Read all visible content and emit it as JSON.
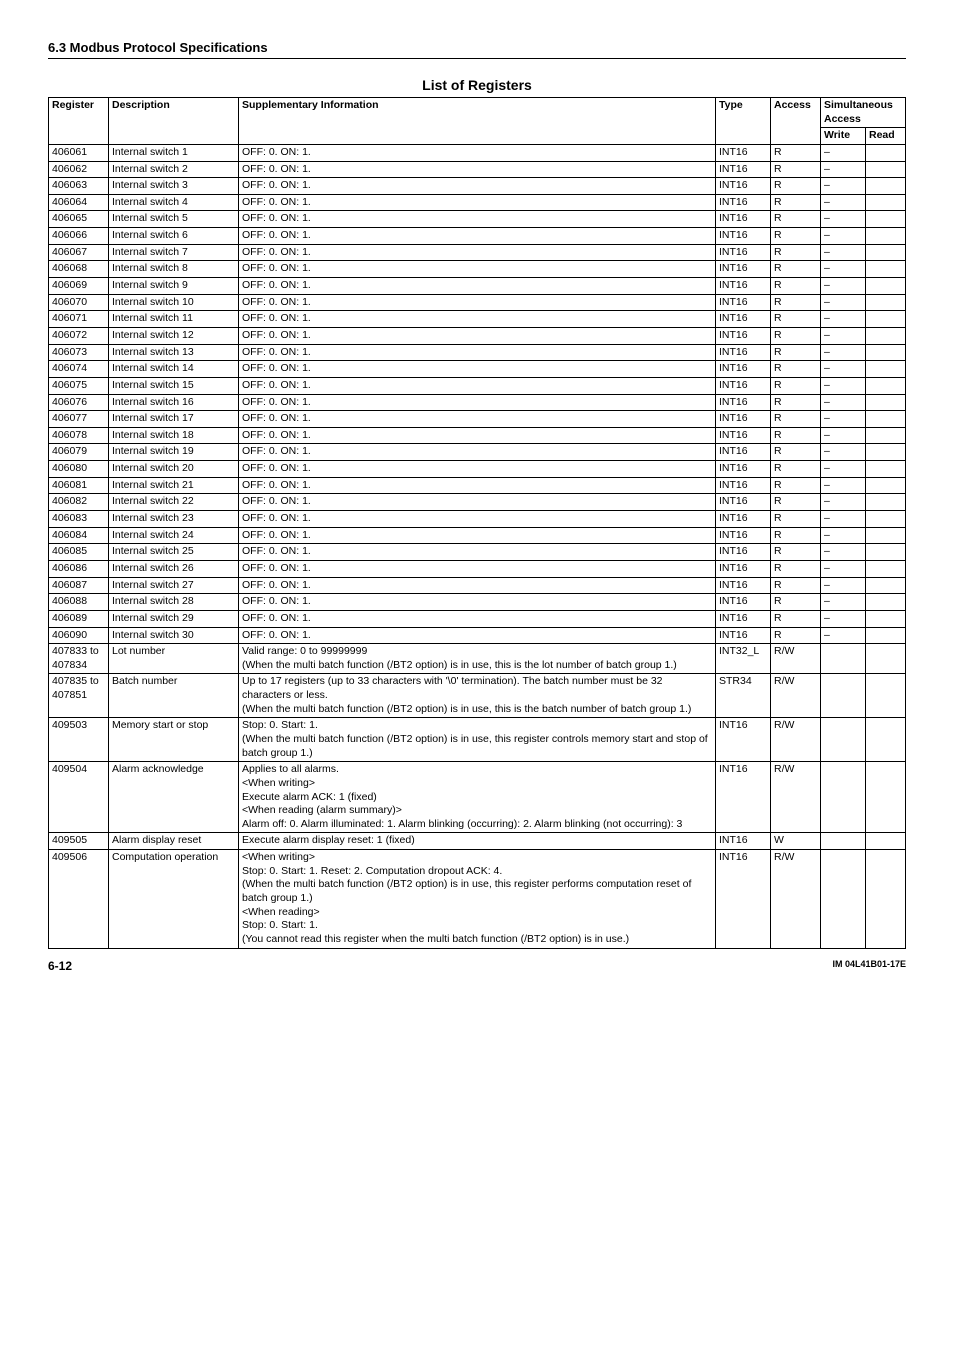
{
  "section_header": "6.3  Modbus Protocol Specifications",
  "table_title": "List of Registers",
  "header": {
    "register": "Register",
    "description": "Description",
    "supplementary": "Supplementary Information",
    "type": "Type",
    "access": "Access",
    "simultaneous": "Simultaneous Access",
    "write": "Write",
    "read": "Read"
  },
  "rows": [
    {
      "reg": "406061",
      "desc": "Internal switch 1",
      "supp": "OFF: 0. ON: 1.",
      "type": "INT16",
      "acc": "R",
      "w": "–",
      "r": ""
    },
    {
      "reg": "406062",
      "desc": "Internal switch 2",
      "supp": "OFF: 0. ON: 1.",
      "type": "INT16",
      "acc": "R",
      "w": "–",
      "r": ""
    },
    {
      "reg": "406063",
      "desc": "Internal switch 3",
      "supp": "OFF: 0. ON: 1.",
      "type": "INT16",
      "acc": "R",
      "w": "–",
      "r": ""
    },
    {
      "reg": "406064",
      "desc": "Internal switch 4",
      "supp": "OFF: 0. ON: 1.",
      "type": "INT16",
      "acc": "R",
      "w": "–",
      "r": ""
    },
    {
      "reg": "406065",
      "desc": "Internal switch 5",
      "supp": "OFF: 0. ON: 1.",
      "type": "INT16",
      "acc": "R",
      "w": "–",
      "r": ""
    },
    {
      "reg": "406066",
      "desc": "Internal switch 6",
      "supp": "OFF: 0. ON: 1.",
      "type": "INT16",
      "acc": "R",
      "w": "–",
      "r": ""
    },
    {
      "reg": "406067",
      "desc": "Internal switch 7",
      "supp": "OFF: 0. ON: 1.",
      "type": "INT16",
      "acc": "R",
      "w": "–",
      "r": ""
    },
    {
      "reg": "406068",
      "desc": "Internal switch 8",
      "supp": "OFF: 0. ON: 1.",
      "type": "INT16",
      "acc": "R",
      "w": "–",
      "r": ""
    },
    {
      "reg": "406069",
      "desc": "Internal switch 9",
      "supp": "OFF: 0. ON: 1.",
      "type": "INT16",
      "acc": "R",
      "w": "–",
      "r": ""
    },
    {
      "reg": "406070",
      "desc": "Internal switch 10",
      "supp": "OFF: 0. ON: 1.",
      "type": "INT16",
      "acc": "R",
      "w": "–",
      "r": ""
    },
    {
      "reg": "406071",
      "desc": "Internal switch 11",
      "supp": "OFF: 0. ON: 1.",
      "type": "INT16",
      "acc": "R",
      "w": "–",
      "r": ""
    },
    {
      "reg": "406072",
      "desc": "Internal switch 12",
      "supp": "OFF: 0. ON: 1.",
      "type": "INT16",
      "acc": "R",
      "w": "–",
      "r": ""
    },
    {
      "reg": "406073",
      "desc": "Internal switch 13",
      "supp": "OFF: 0. ON: 1.",
      "type": "INT16",
      "acc": "R",
      "w": "–",
      "r": ""
    },
    {
      "reg": "406074",
      "desc": "Internal switch 14",
      "supp": "OFF: 0. ON: 1.",
      "type": "INT16",
      "acc": "R",
      "w": "–",
      "r": ""
    },
    {
      "reg": "406075",
      "desc": "Internal switch 15",
      "supp": "OFF: 0. ON: 1.",
      "type": "INT16",
      "acc": "R",
      "w": "–",
      "r": ""
    },
    {
      "reg": "406076",
      "desc": "Internal switch 16",
      "supp": "OFF: 0. ON: 1.",
      "type": "INT16",
      "acc": "R",
      "w": "–",
      "r": ""
    },
    {
      "reg": "406077",
      "desc": "Internal switch 17",
      "supp": "OFF: 0. ON: 1.",
      "type": "INT16",
      "acc": "R",
      "w": "–",
      "r": ""
    },
    {
      "reg": "406078",
      "desc": "Internal switch 18",
      "supp": "OFF: 0. ON: 1.",
      "type": "INT16",
      "acc": "R",
      "w": "–",
      "r": ""
    },
    {
      "reg": "406079",
      "desc": "Internal switch 19",
      "supp": "OFF: 0. ON: 1.",
      "type": "INT16",
      "acc": "R",
      "w": "–",
      "r": ""
    },
    {
      "reg": "406080",
      "desc": "Internal switch 20",
      "supp": "OFF: 0. ON: 1.",
      "type": "INT16",
      "acc": "R",
      "w": "–",
      "r": ""
    },
    {
      "reg": "406081",
      "desc": "Internal switch 21",
      "supp": "OFF: 0. ON: 1.",
      "type": "INT16",
      "acc": "R",
      "w": "–",
      "r": ""
    },
    {
      "reg": "406082",
      "desc": "Internal switch 22",
      "supp": "OFF: 0. ON: 1.",
      "type": "INT16",
      "acc": "R",
      "w": "–",
      "r": ""
    },
    {
      "reg": "406083",
      "desc": "Internal switch 23",
      "supp": "OFF: 0. ON: 1.",
      "type": "INT16",
      "acc": "R",
      "w": "–",
      "r": ""
    },
    {
      "reg": "406084",
      "desc": "Internal switch 24",
      "supp": "OFF: 0. ON: 1.",
      "type": "INT16",
      "acc": "R",
      "w": "–",
      "r": ""
    },
    {
      "reg": "406085",
      "desc": "Internal switch 25",
      "supp": "OFF: 0. ON: 1.",
      "type": "INT16",
      "acc": "R",
      "w": "–",
      "r": ""
    },
    {
      "reg": "406086",
      "desc": "Internal switch 26",
      "supp": "OFF: 0. ON: 1.",
      "type": "INT16",
      "acc": "R",
      "w": "–",
      "r": ""
    },
    {
      "reg": "406087",
      "desc": "Internal switch 27",
      "supp": "OFF: 0. ON: 1.",
      "type": "INT16",
      "acc": "R",
      "w": "–",
      "r": ""
    },
    {
      "reg": "406088",
      "desc": "Internal switch 28",
      "supp": "OFF: 0. ON: 1.",
      "type": "INT16",
      "acc": "R",
      "w": "–",
      "r": ""
    },
    {
      "reg": "406089",
      "desc": "Internal switch 29",
      "supp": "OFF: 0. ON: 1.",
      "type": "INT16",
      "acc": "R",
      "w": "–",
      "r": ""
    },
    {
      "reg": "406090",
      "desc": "Internal switch 30",
      "supp": "OFF: 0. ON: 1.",
      "type": "INT16",
      "acc": "R",
      "w": "–",
      "r": ""
    },
    {
      "reg": "407833 to 407834",
      "desc": "Lot number",
      "supp": "Valid range: 0 to 99999999\n(When the multi batch function (/BT2 option) is in use, this is the lot number of batch group 1.)",
      "type": "INT32_L",
      "acc": "R/W",
      "w": "",
      "r": ""
    },
    {
      "reg": "407835 to 407851",
      "desc": "Batch number",
      "supp": "Up to 17 registers (up to 33 characters with '\\0' termination). The batch number must be 32 characters or less.\n(When the multi batch function (/BT2 option) is in use, this is the batch number of batch group 1.)",
      "type": "STR34",
      "acc": "R/W",
      "w": "",
      "r": ""
    },
    {
      "reg": "409503",
      "desc": "Memory start or stop",
      "supp": "Stop: 0. Start: 1.\n(When the multi batch function (/BT2 option) is in use, this register controls memory start and stop of batch group 1.)",
      "type": "INT16",
      "acc": "R/W",
      "w": "",
      "r": ""
    },
    {
      "reg": "409504",
      "desc": "Alarm acknowledge",
      "supp": "Applies to all alarms.\n<When writing>\nExecute alarm ACK: 1 (fixed)\n<When reading (alarm summary)>\nAlarm off: 0. Alarm illuminated: 1. Alarm blinking (occurring): 2. Alarm blinking (not occurring): 3",
      "type": "INT16",
      "acc": "R/W",
      "w": "",
      "r": ""
    },
    {
      "reg": "409505",
      "desc": "Alarm display reset",
      "supp": "Execute alarm display reset: 1 (fixed)",
      "type": "INT16",
      "acc": "W",
      "w": "",
      "r": ""
    },
    {
      "reg": "409506",
      "desc": "Computation operation",
      "supp": "<When writing>\nStop: 0. Start: 1. Reset: 2. Computation dropout ACK: 4.\n(When the multi batch function (/BT2 option) is in use, this register performs computation reset of batch group 1.)\n<When reading>\nStop: 0. Start: 1.\n(You cannot read this register when the multi batch function (/BT2 option) is in use.)",
      "type": "INT16",
      "acc": "R/W",
      "w": "",
      "r": ""
    }
  ],
  "footer": {
    "page": "6-12",
    "docid": "IM 04L41B01-17E"
  },
  "style": {
    "font_family": "Arial, Helvetica, sans-serif",
    "body_bg": "#ffffff",
    "text_color": "#000000",
    "border_color": "#000000",
    "section_header_fontsize": 13,
    "table_title_fontsize": 14,
    "table_fontsize": 10.5,
    "footer_page_fontsize": 12,
    "footer_docid_fontsize": 9
  }
}
